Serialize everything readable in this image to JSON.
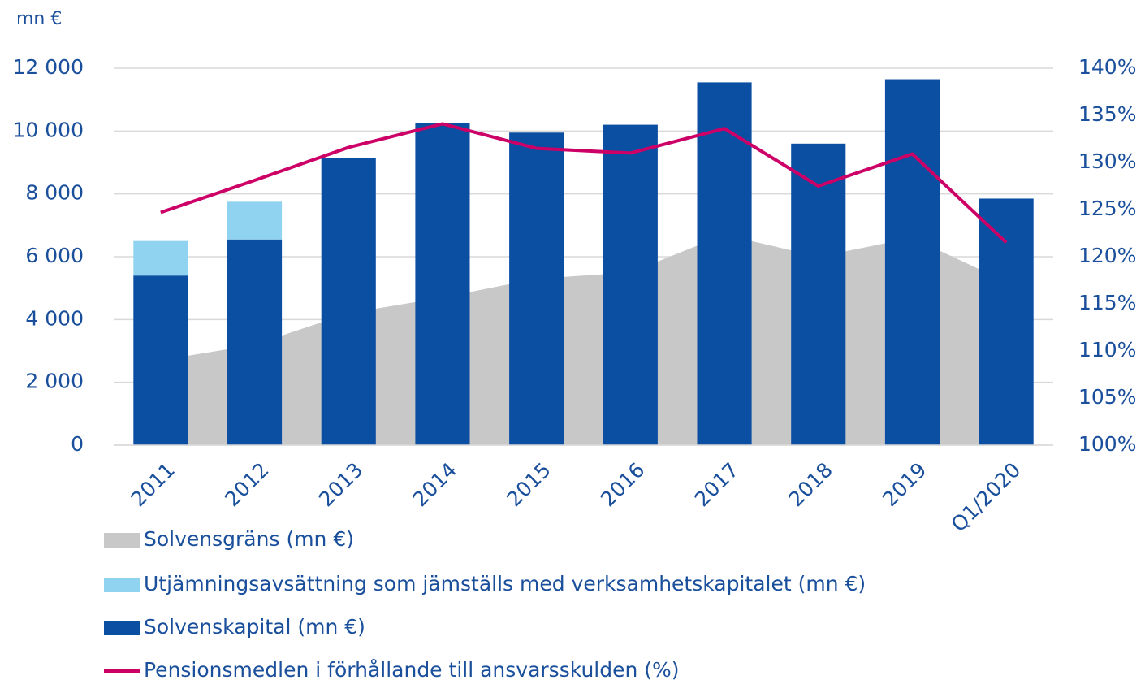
{
  "chart_data": {
    "type": "bar",
    "y_label": "mn €",
    "categories": [
      "2011",
      "2012",
      "2013",
      "2014",
      "2015",
      "2016",
      "2017",
      "2018",
      "2019",
      "Q1/2020"
    ],
    "series": [
      {
        "name": "Solvensgräns (mn €)",
        "type": "area",
        "color": "#c8c8c8",
        "values": [
          2700,
          3200,
          4200,
          4700,
          5300,
          5500,
          6700,
          6000,
          6600,
          5200
        ]
      },
      {
        "name": "Utjämningsavsättning som jämställs med verksamhetskapitalet (mn €)",
        "type": "bar",
        "stack": "s",
        "color": "#8fd3f0",
        "values": [
          1100,
          1200,
          0,
          0,
          0,
          0,
          0,
          0,
          0,
          0
        ]
      },
      {
        "name": "Solvenskapital (mn €)",
        "type": "bar",
        "stack": "s",
        "color": "#0b4fa2",
        "values": [
          5400,
          6550,
          9150,
          10250,
          9950,
          10200,
          11550,
          9600,
          11650,
          7850
        ]
      },
      {
        "name": "Pensionsmedlen i förhållande till ansvarsskulden (%)",
        "type": "line",
        "axis": "y2",
        "color": "#cc0066",
        "values": [
          124.7,
          128.1,
          131.6,
          134.1,
          131.5,
          131.0,
          133.6,
          127.5,
          130.9,
          121.5
        ]
      }
    ],
    "ylim": [
      0,
      12000
    ],
    "yticks": [
      0,
      {
        "value": 2000,
        "label": "2 000"
      },
      {
        "value": 4000,
        "label": "4 000"
      },
      {
        "value": 6000,
        "label": "6 000"
      },
      {
        "value": 8000,
        "label": "8 000"
      },
      {
        "value": 10000,
        "label": "10 000"
      },
      {
        "value": 12000,
        "label": "12 000"
      }
    ],
    "y2lim": [
      100,
      140
    ],
    "y2ticks": [
      {
        "value": 100,
        "label": "100%"
      },
      {
        "value": 105,
        "label": "105%"
      },
      {
        "value": 110,
        "label": "110%"
      },
      {
        "value": 115,
        "label": "115%"
      },
      {
        "value": 120,
        "label": "120%"
      },
      {
        "value": 125,
        "label": "125%"
      },
      {
        "value": 130,
        "label": "130%"
      },
      {
        "value": 135,
        "label": "135%"
      },
      {
        "value": 140,
        "label": "140%"
      }
    ],
    "grid": true,
    "legend": "bottom"
  }
}
